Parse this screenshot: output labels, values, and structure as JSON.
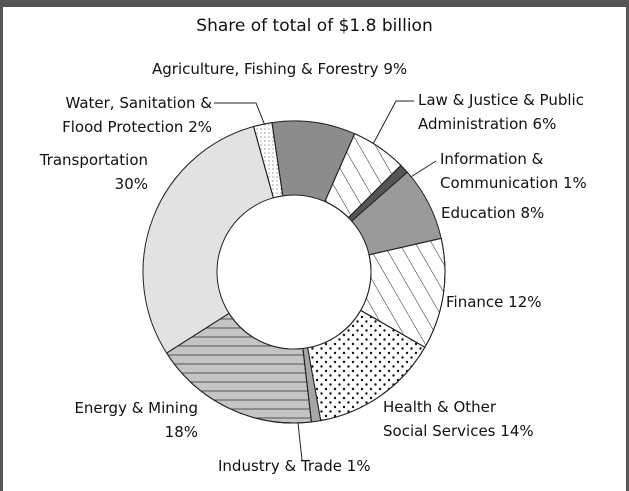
{
  "chart_data": {
    "type": "donut",
    "title": "Share of total of $1.8 billion",
    "categories": [
      "Agriculture, Fishing & Forestry",
      "Law & Justice & Public Administration",
      "Information & Communication",
      "Education",
      "Finance",
      "Health & Other Social Services",
      "Industry & Trade",
      "Energy & Mining",
      "Transportation",
      "Water, Sanitation & Flood Protection"
    ],
    "values": [
      9,
      6,
      1,
      8,
      12,
      14,
      1,
      18,
      30,
      2
    ],
    "value_labels": [
      "9%",
      "6%",
      "1%",
      "8%",
      "12%",
      "14%",
      "1%",
      "18%",
      "30%",
      "2%"
    ],
    "colors": [
      "#8c8c8c",
      "#ffffff",
      "#555555",
      "#9a9a9a",
      "#ffffff",
      "#ffffff",
      "#a6a6a6",
      "#c4c4c4",
      "#e2e2e2",
      "#ffffff"
    ]
  }
}
